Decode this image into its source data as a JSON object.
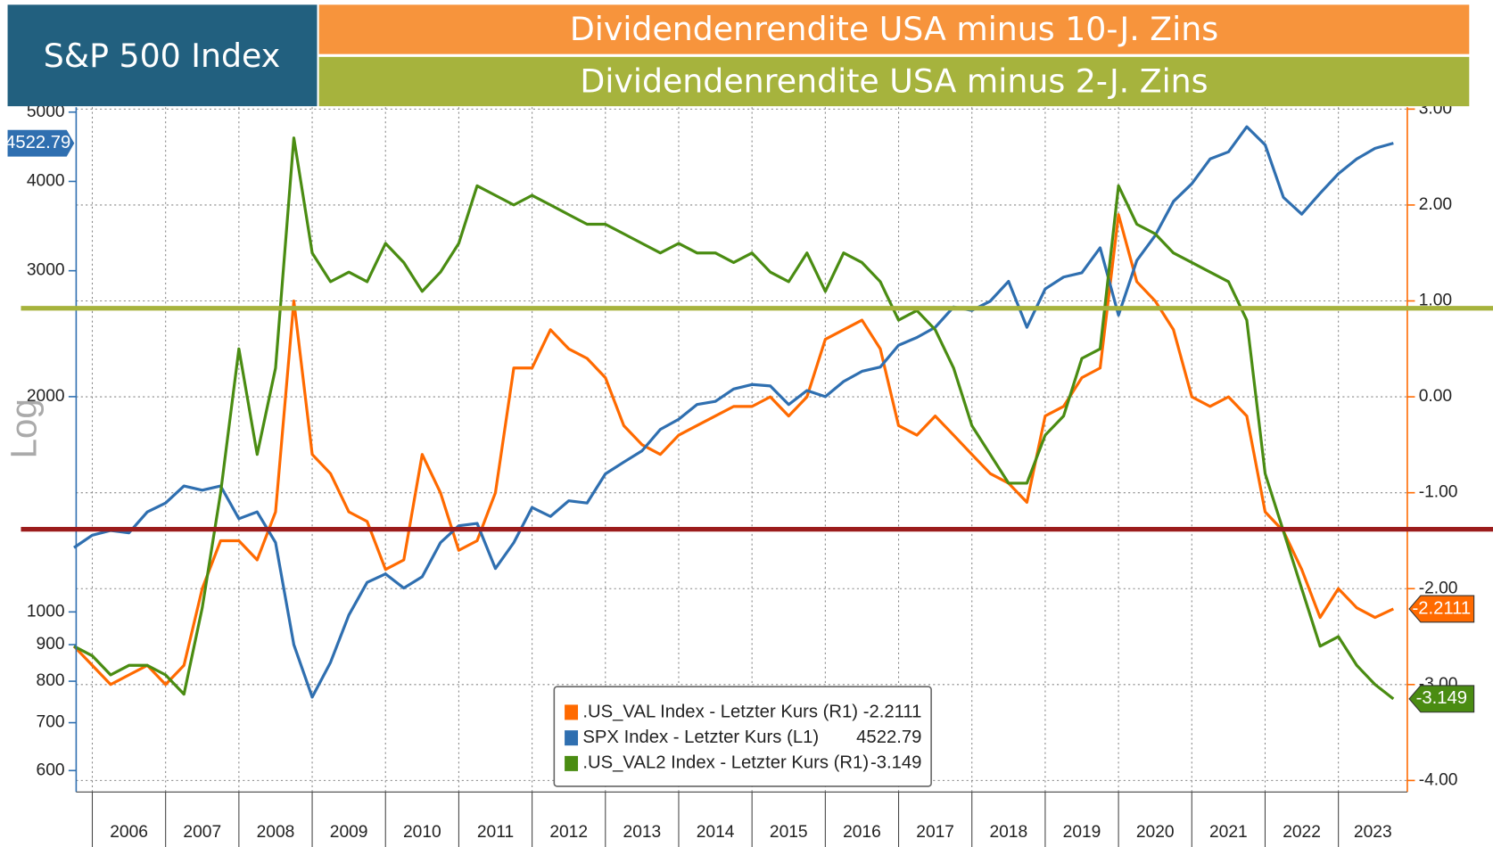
{
  "chart_data": {
    "type": "line",
    "title": "S&P 500 Index",
    "subtitles": [
      "Dividendenrendite USA minus 10-J. Zins",
      "Dividendenrendite USA minus 2-J. Zins"
    ],
    "ylabel": "Log",
    "ylog": true,
    "grid": true,
    "x": [
      2005.75,
      2006,
      2006.25,
      2006.5,
      2006.75,
      2007,
      2007.25,
      2007.5,
      2007.75,
      2008,
      2008.25,
      2008.5,
      2008.75,
      2009,
      2009.25,
      2009.5,
      2009.75,
      2010,
      2010.25,
      2010.5,
      2010.75,
      2011,
      2011.25,
      2011.5,
      2011.75,
      2012,
      2012.25,
      2012.5,
      2012.75,
      2013,
      2013.25,
      2013.5,
      2013.75,
      2014,
      2014.25,
      2014.5,
      2014.75,
      2015,
      2015.25,
      2015.5,
      2015.75,
      2016,
      2016.25,
      2016.5,
      2016.75,
      2017,
      2017.25,
      2017.5,
      2017.75,
      2018,
      2018.25,
      2018.5,
      2018.75,
      2019,
      2019.25,
      2019.5,
      2019.75,
      2020,
      2020.25,
      2020.5,
      2020.75,
      2021,
      2021.25,
      2021.5,
      2021.75,
      2022,
      2022.25,
      2022.5,
      2022.75,
      2023,
      2023.25,
      2023.5,
      2023.75
    ],
    "xlim": [
      2005.78,
      2023.94
    ],
    "xticks": [
      {
        "value": 2006,
        "label": "2006"
      },
      {
        "value": 2007,
        "label": "2007"
      },
      {
        "value": 2008,
        "label": "2008"
      },
      {
        "value": 2009,
        "label": "2009"
      },
      {
        "value": 2010,
        "label": "2010"
      },
      {
        "value": 2011,
        "label": "2011"
      },
      {
        "value": 2012,
        "label": "2012"
      },
      {
        "value": 2013,
        "label": "2013"
      },
      {
        "value": 2014,
        "label": "2014"
      },
      {
        "value": 2015,
        "label": "2015"
      },
      {
        "value": 2016,
        "label": "2016"
      },
      {
        "value": 2017,
        "label": "2017"
      },
      {
        "value": 2018,
        "label": "2018"
      },
      {
        "value": 2019,
        "label": "2019"
      },
      {
        "value": 2020,
        "label": "2020"
      },
      {
        "value": 2021,
        "label": "2021"
      },
      {
        "value": 2022,
        "label": "2022"
      },
      {
        "value": 2023,
        "label": "2023"
      }
    ],
    "ylim": [
      560,
      5080
    ],
    "yticks": [
      600,
      700,
      800,
      900,
      1000,
      2000,
      3000,
      4000,
      5000
    ],
    "y2lim": [
      -4.12,
      3.02
    ],
    "y2ticks": [
      {
        "value": 3,
        "label": "3.00"
      },
      {
        "value": 2,
        "label": "2.00"
      },
      {
        "value": 1,
        "label": "1.00"
      },
      {
        "value": 0,
        "label": "0.00"
      },
      {
        "value": -1,
        "label": "-1.00"
      },
      {
        "value": -2,
        "label": "-2.00"
      },
      {
        "value": -3,
        "label": "-3.00"
      },
      {
        "value": -4,
        "label": "-4.00"
      }
    ],
    "series": [
      {
        "name": ".US_VAL Index - Letzter Kurs (R1)",
        "color": "#ff6a00",
        "axis": "y2",
        "values": [
          -2.6,
          -2.8,
          -3.0,
          -2.9,
          -2.8,
          -3.0,
          -2.8,
          -2.0,
          -1.5,
          -1.5,
          -1.7,
          -1.2,
          1.0,
          -0.6,
          -0.8,
          -1.2,
          -1.3,
          -1.8,
          -1.7,
          -0.6,
          -1.0,
          -1.6,
          -1.5,
          -1.0,
          0.3,
          0.3,
          0.7,
          0.5,
          0.4,
          0.2,
          -0.3,
          -0.5,
          -0.6,
          -0.4,
          -0.3,
          -0.2,
          -0.1,
          -0.1,
          0.0,
          -0.2,
          0.0,
          0.6,
          0.7,
          0.8,
          0.5,
          -0.3,
          -0.4,
          -0.2,
          -0.4,
          -0.6,
          -0.8,
          -0.9,
          -1.1,
          -0.2,
          -0.1,
          0.2,
          0.3,
          1.9,
          1.2,
          1.0,
          0.7,
          0.0,
          -0.1,
          0.0,
          -0.2,
          -1.2,
          -1.4,
          -1.8,
          -2.3,
          -2.0,
          -2.2,
          -2.3,
          -2.2111
        ]
      },
      {
        "name": "SPX Index - Letzter Kurs (L1)",
        "color": "#2f6fb0",
        "axis": "y",
        "values": [
          1230,
          1280,
          1300,
          1290,
          1380,
          1420,
          1500,
          1480,
          1500,
          1350,
          1380,
          1250,
          900,
          760,
          850,
          990,
          1100,
          1130,
          1080,
          1120,
          1250,
          1320,
          1330,
          1150,
          1250,
          1400,
          1360,
          1430,
          1420,
          1560,
          1620,
          1680,
          1800,
          1860,
          1950,
          1970,
          2050,
          2080,
          2070,
          1950,
          2040,
          2000,
          2100,
          2170,
          2200,
          2360,
          2420,
          2500,
          2670,
          2640,
          2720,
          2900,
          2500,
          2830,
          2940,
          2980,
          3230,
          2600,
          3100,
          3360,
          3750,
          3970,
          4300,
          4400,
          4770,
          4500,
          3800,
          3600,
          3850,
          4100,
          4300,
          4450,
          4522.79
        ]
      },
      {
        "name": ".US_VAL2 Index - Letzter Kurs (R1)",
        "color": "#4a8c12",
        "axis": "y2",
        "values": [
          -2.6,
          -2.7,
          -2.9,
          -2.8,
          -2.8,
          -2.9,
          -3.1,
          -2.2,
          -1.0,
          0.5,
          -0.6,
          0.3,
          2.7,
          1.5,
          1.2,
          1.3,
          1.2,
          1.6,
          1.4,
          1.1,
          1.3,
          1.6,
          2.2,
          2.1,
          2.0,
          2.1,
          2.0,
          1.9,
          1.8,
          1.8,
          1.7,
          1.6,
          1.5,
          1.6,
          1.5,
          1.5,
          1.4,
          1.5,
          1.3,
          1.2,
          1.5,
          1.1,
          1.5,
          1.4,
          1.2,
          0.8,
          0.9,
          0.7,
          0.3,
          -0.3,
          -0.6,
          -0.9,
          -0.9,
          -0.4,
          -0.2,
          0.4,
          0.5,
          2.2,
          1.8,
          1.7,
          1.5,
          1.4,
          1.3,
          1.2,
          0.8,
          -0.8,
          -1.4,
          -2.0,
          -2.6,
          -2.5,
          -2.8,
          -3.0,
          -3.149
        ]
      }
    ]
  }
}
